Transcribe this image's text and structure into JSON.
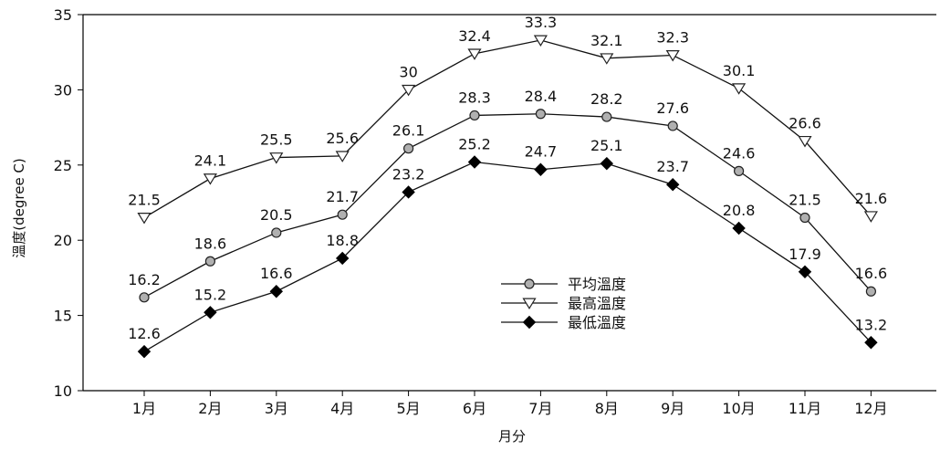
{
  "chart_data": {
    "type": "line",
    "title": "",
    "xlabel": "月分",
    "ylabel": "溫度(degree C)",
    "categories": [
      "1月",
      "2月",
      "3月",
      "4月",
      "5月",
      "6月",
      "7月",
      "8月",
      "9月",
      "10月",
      "11月",
      "12月"
    ],
    "ylim": [
      10,
      35
    ],
    "yticks": [
      10,
      15,
      20,
      25,
      30,
      35
    ],
    "grid": false,
    "legend_position": "center-right",
    "series": [
      {
        "name": "平均溫度",
        "marker": "circle",
        "marker_color": "#b0b0b0",
        "values": [
          16.2,
          18.6,
          20.5,
          21.7,
          26.1,
          28.3,
          28.4,
          28.2,
          27.6,
          24.6,
          21.5,
          16.6
        ]
      },
      {
        "name": "最高溫度",
        "marker": "triangle-down",
        "marker_color": "#ffffff",
        "values": [
          21.5,
          24.1,
          25.5,
          25.6,
          30,
          32.4,
          33.3,
          32.1,
          32.3,
          30.1,
          26.6,
          21.6
        ]
      },
      {
        "name": "最低溫度",
        "marker": "diamond",
        "marker_color": "#000000",
        "values": [
          12.6,
          15.2,
          16.6,
          18.8,
          23.2,
          25.2,
          24.7,
          25.1,
          23.7,
          20.8,
          17.9,
          13.2
        ]
      }
    ]
  }
}
